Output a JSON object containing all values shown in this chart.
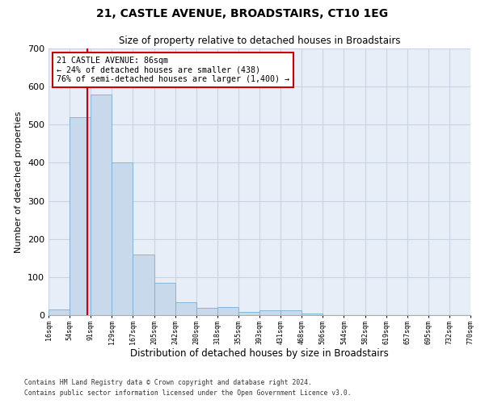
{
  "title": "21, CASTLE AVENUE, BROADSTAIRS, CT10 1EG",
  "subtitle": "Size of property relative to detached houses in Broadstairs",
  "xlabel": "Distribution of detached houses by size in Broadstairs",
  "ylabel": "Number of detached properties",
  "bar_values": [
    15,
    520,
    580,
    400,
    160,
    85,
    35,
    20,
    22,
    8,
    12,
    12,
    5,
    0,
    0,
    0,
    0,
    0,
    0,
    0
  ],
  "tick_labels": [
    "16sqm",
    "54sqm",
    "91sqm",
    "129sqm",
    "167sqm",
    "205sqm",
    "242sqm",
    "280sqm",
    "318sqm",
    "355sqm",
    "393sqm",
    "431sqm",
    "468sqm",
    "506sqm",
    "544sqm",
    "582sqm",
    "619sqm",
    "657sqm",
    "695sqm",
    "732sqm",
    "770sqm"
  ],
  "bar_color": "#c9d9ec",
  "bar_edge_color": "#7aafd4",
  "highlight_bin_index": 1,
  "property_label": "21 CASTLE AVENUE: 86sqm",
  "annotation_line1": "← 24% of detached houses are smaller (438)",
  "annotation_line2": "76% of semi-detached houses are larger (1,400) →",
  "annotation_box_color": "#ffffff",
  "annotation_border_color": "#cc0000",
  "highlight_line_color": "#cc0000",
  "ylim": [
    0,
    700
  ],
  "yticks": [
    0,
    100,
    200,
    300,
    400,
    500,
    600,
    700
  ],
  "grid_color": "#c8d4e3",
  "background_color": "#e8eef8",
  "footnote1": "Contains HM Land Registry data © Crown copyright and database right 2024.",
  "footnote2": "Contains public sector information licensed under the Open Government Licence v3.0."
}
